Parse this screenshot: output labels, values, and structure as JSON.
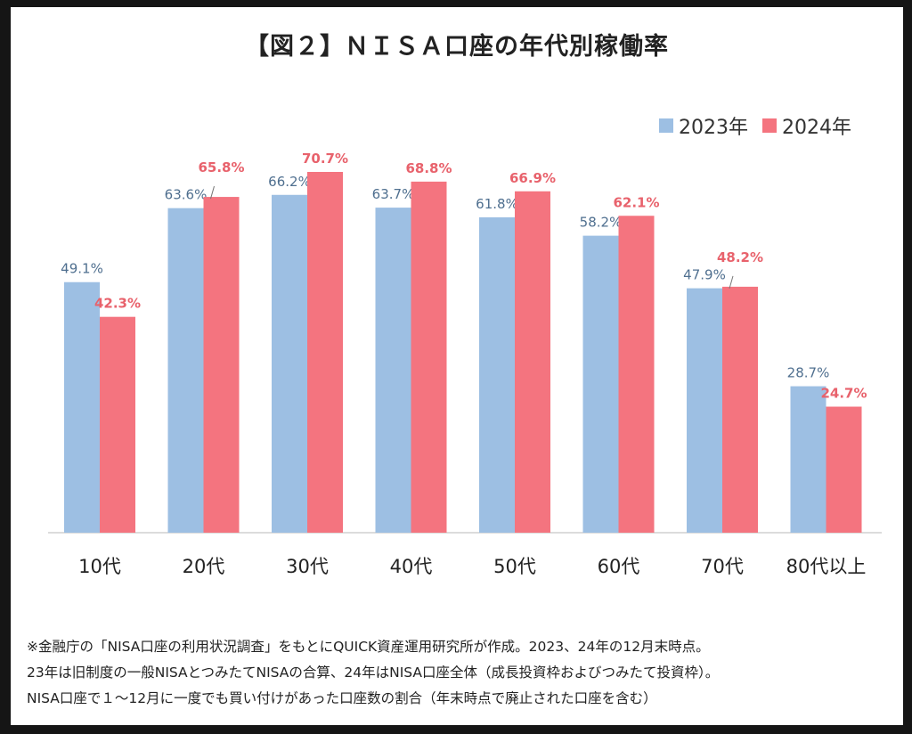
{
  "title": "【図２】ＮＩＳＡ口座の年代別稼働率",
  "colors": {
    "series_2023": "#9dbfe3",
    "series_2024": "#f4747f",
    "label_2023": "#4f6f8f",
    "label_2024": "#e8626c"
  },
  "chart_data": {
    "type": "bar",
    "title": "【図２】ＮＩＳＡ口座の年代別稼働率",
    "categories": [
      "10代",
      "20代",
      "30代",
      "40代",
      "50代",
      "60代",
      "70代",
      "80代以上"
    ],
    "series": [
      {
        "name": "2023年",
        "values": [
          49.1,
          63.6,
          66.2,
          63.7,
          61.8,
          58.2,
          47.9,
          28.7
        ],
        "labels": [
          "49.1%",
          "63.6%",
          "66.2%",
          "63.7%",
          "61.8%",
          "58.2%",
          "47.9%",
          "28.7%"
        ]
      },
      {
        "name": "2024年",
        "values": [
          42.3,
          65.8,
          70.7,
          68.8,
          66.9,
          62.1,
          48.2,
          24.7
        ],
        "labels": [
          "42.3%",
          "65.8%",
          "70.7%",
          "68.8%",
          "66.9%",
          "62.1%",
          "48.2%",
          "24.7%"
        ]
      }
    ],
    "ylim": [
      0,
      76
    ],
    "grid": false,
    "legend": "top-right"
  },
  "notes": [
    "※金融庁の「NISA口座の利用状況調査」をもとにQUICK資産運用研究所が作成。2023、24年の12月末時点。",
    "23年は旧制度の一般NISAとつみたてNISAの合算、24年はNISA口座全体（成長投資枠およびつみたて投資枠）。",
    "NISA口座で１～12月に一度でも買い付けがあった口座数の割合（年末時点で廃止された口座を含む）"
  ]
}
